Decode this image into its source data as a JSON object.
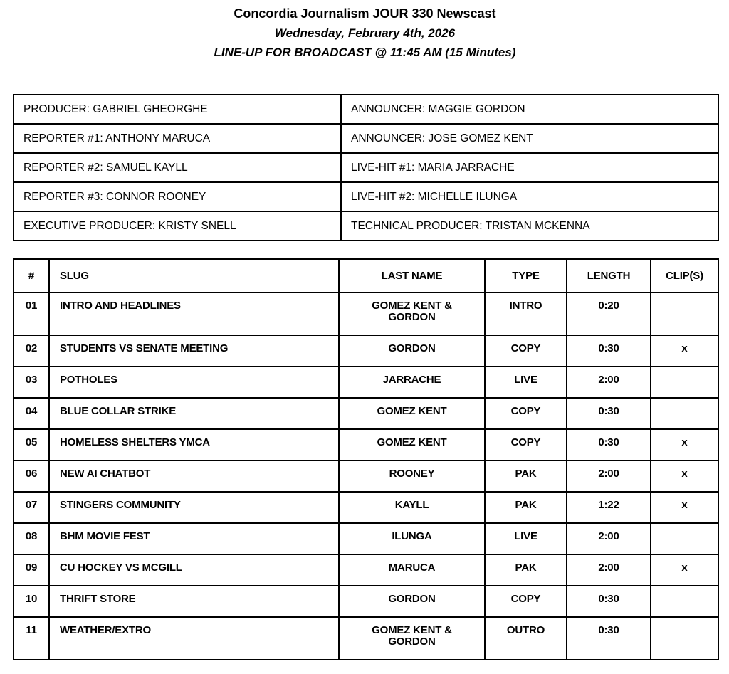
{
  "header": {
    "title": "Concordia Journalism JOUR 330 Newscast",
    "date_line": "Wednesday, February 4th, 2026",
    "lineup_line": "LINE-UP FOR BROADCAST @ 11:45 AM (15 Minutes)"
  },
  "crew_table": {
    "rows": [
      {
        "left": "PRODUCER: GABRIEL GHEORGHE",
        "right": "ANNOUNCER: MAGGIE GORDON"
      },
      {
        "left": "REPORTER #1: ANTHONY MARUCA",
        "right": "ANNOUNCER: JOSE GOMEZ KENT"
      },
      {
        "left": "REPORTER #2: SAMUEL KAYLL",
        "right": "LIVE-HIT #1: MARIA JARRACHE"
      },
      {
        "left": "REPORTER #3: CONNOR ROONEY",
        "right": "LIVE-HIT #2: MICHELLE ILUNGA"
      },
      {
        "left": "EXECUTIVE PRODUCER: KRISTY SNELL",
        "right": "TECHNICAL PRODUCER: TRISTAN MCKENNA"
      }
    ]
  },
  "rundown": {
    "columns": [
      "#",
      "SLUG",
      "LAST NAME",
      "TYPE",
      "LENGTH",
      "CLIP(S)"
    ],
    "rows": [
      {
        "num": "01",
        "slug": "INTRO AND HEADLINES",
        "last_name": "GOMEZ KENT &\nGORDON",
        "type": "INTRO",
        "length": "0:20",
        "clip": ""
      },
      {
        "num": "02",
        "slug": "STUDENTS VS SENATE MEETING",
        "last_name": "GORDON",
        "type": "COPY",
        "length": "0:30",
        "clip": "x"
      },
      {
        "num": "03",
        "slug": "POTHOLES",
        "last_name": "JARRACHE",
        "type": "LIVE",
        "length": "2:00",
        "clip": ""
      },
      {
        "num": "04",
        "slug": "BLUE COLLAR STRIKE",
        "last_name": "GOMEZ KENT",
        "type": "COPY",
        "length": "0:30",
        "clip": ""
      },
      {
        "num": "05",
        "slug": "HOMELESS SHELTERS YMCA",
        "last_name": "GOMEZ KENT",
        "type": "COPY",
        "length": "0:30",
        "clip": "x"
      },
      {
        "num": "06",
        "slug": "NEW AI CHATBOT",
        "last_name": "ROONEY",
        "type": "PAK",
        "length": "2:00",
        "clip": "x"
      },
      {
        "num": "07",
        "slug": "STINGERS COMMUNITY",
        "last_name": "KAYLL",
        "type": "PAK",
        "length": "1:22",
        "clip": "x"
      },
      {
        "num": "08",
        "slug": "BHM MOVIE FEST",
        "last_name": "ILUNGA",
        "type": "LIVE",
        "length": "2:00",
        "clip": ""
      },
      {
        "num": "09",
        "slug": "CU HOCKEY VS MCGILL",
        "last_name": "MARUCA",
        "type": "PAK",
        "length": "2:00",
        "clip": "x"
      },
      {
        "num": "10",
        "slug": "THRIFT STORE",
        "last_name": "GORDON",
        "type": "COPY",
        "length": "0:30",
        "clip": ""
      },
      {
        "num": "11",
        "slug": "WEATHER/EXTRO",
        "last_name": "GOMEZ KENT &\nGORDON",
        "type": "OUTRO",
        "length": "0:30",
        "clip": ""
      }
    ]
  }
}
